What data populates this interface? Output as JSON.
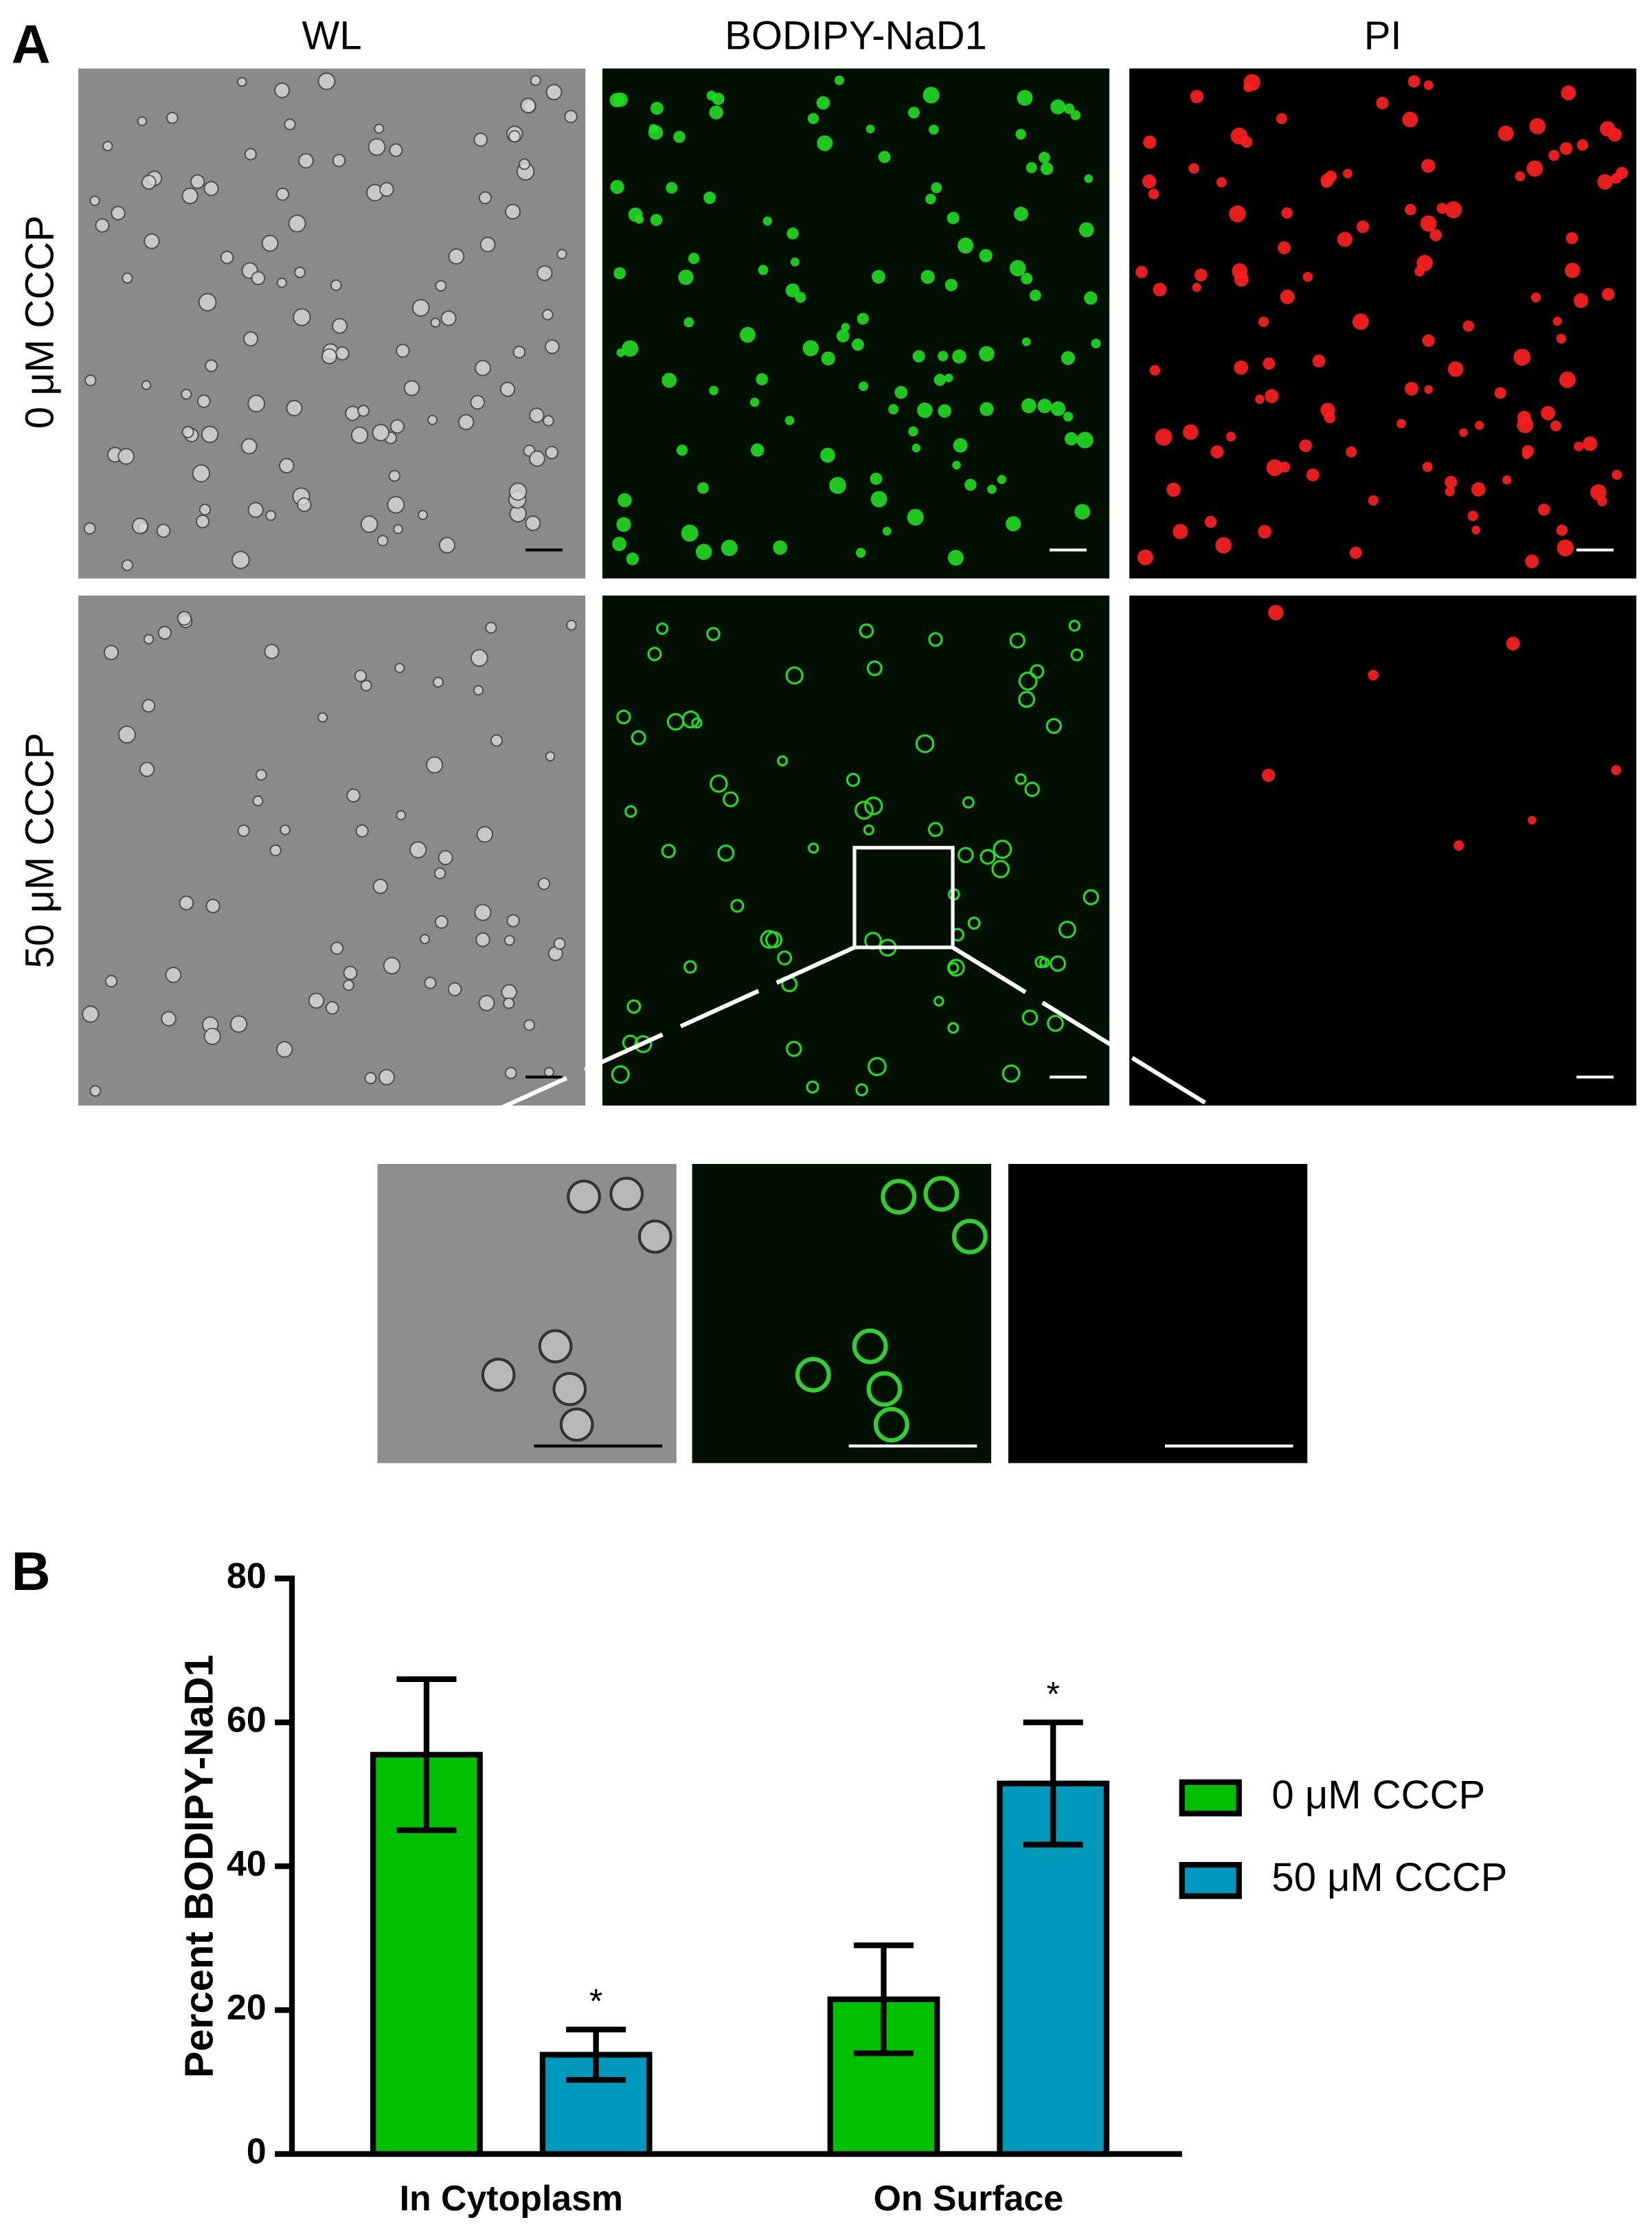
{
  "panel_a": {
    "label": "A",
    "columns": [
      "WL",
      "BODIPY-NaD1",
      "PI"
    ],
    "rows": [
      "0 μM CCCP",
      "50 μM CCCP"
    ]
  },
  "chart_data": {
    "type": "bar",
    "panel_label": "B",
    "categories": [
      "In Cytoplasm",
      "On Surface"
    ],
    "series": [
      {
        "name": "0 μM CCCP",
        "color": "#00c000",
        "values": [
          55.5,
          21.5
        ],
        "errors": [
          10.5,
          7.5
        ]
      },
      {
        "name": "50 μM CCCP",
        "color": "#0099bb",
        "values": [
          13.8,
          51.5
        ],
        "errors": [
          3.5,
          8.5
        ],
        "significance": [
          "*",
          "*"
        ]
      }
    ],
    "ylabel": "Percent BODIPY-NaD1",
    "ylim": [
      0,
      80
    ],
    "yticks": [
      0,
      20,
      40,
      60,
      80
    ],
    "legend": "right"
  }
}
